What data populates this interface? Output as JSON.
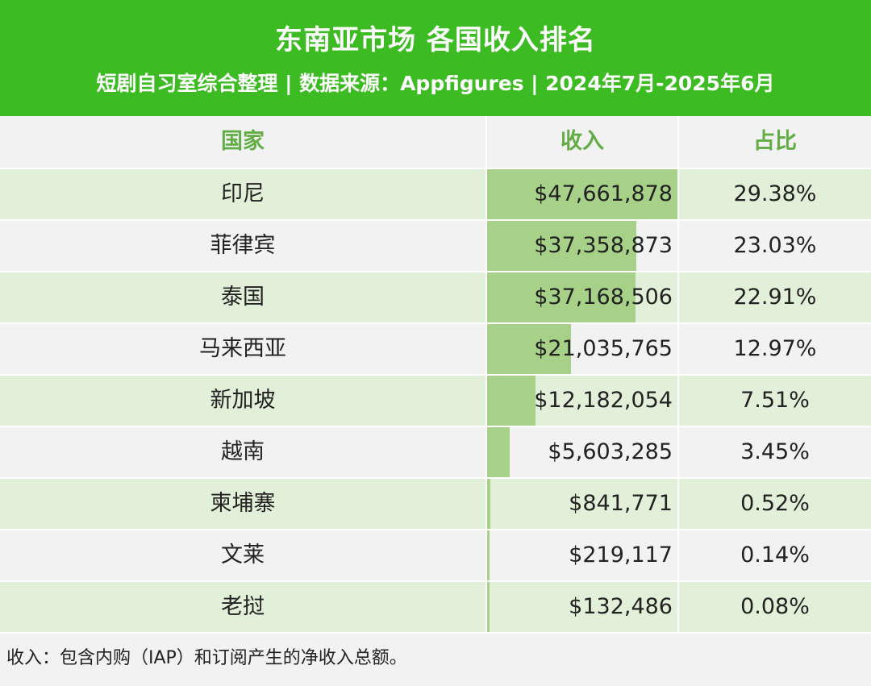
{
  "header": {
    "title": "东南亚市场 各国收入排名",
    "subtitle": "短剧自习室综合整理 | 数据来源：Appfigures | 2024年7月-2025年6月"
  },
  "table": {
    "columns": [
      "国家",
      "收入",
      "占比"
    ],
    "rows": [
      {
        "country": "印尼",
        "revenue": "$47,661,878",
        "share": "29.38%"
      },
      {
        "country": "菲律宾",
        "revenue": "$37,358,873",
        "share": "23.03%"
      },
      {
        "country": "泰国",
        "revenue": "$37,168,506",
        "share": "22.91%"
      },
      {
        "country": "马来西亚",
        "revenue": "$21,035,765",
        "share": "12.97%"
      },
      {
        "country": "新加坡",
        "revenue": "$12,182,054",
        "share": "7.51%"
      },
      {
        "country": "越南",
        "revenue": "$5,603,285",
        "share": "3.45%"
      },
      {
        "country": "柬埔寨",
        "revenue": "$841,771",
        "share": "0.52%"
      },
      {
        "country": "文莱",
        "revenue": "$219,117",
        "share": "0.14%"
      },
      {
        "country": "老挝",
        "revenue": "$132,486",
        "share": "0.08%"
      }
    ]
  },
  "footer": {
    "note": "收入：包含内购（IAP）和订阅产生的净收入总额。"
  },
  "colors": {
    "header_bg": "#3cbc22",
    "header_text": "#ffffff",
    "column_header_text": "#62ad46",
    "row_alt": "#e3f0d9",
    "row_plain": "#f2f2f2",
    "bar": "#a7d189"
  },
  "chart_data": {
    "type": "table",
    "title": "东南亚市场 各国收入排名",
    "subtitle": "短剧自习室综合整理 | 数据来源：Appfigures | 2024年7月-2025年6月",
    "columns": [
      "国家",
      "收入",
      "占比"
    ],
    "categories": [
      "印尼",
      "菲律宾",
      "泰国",
      "马来西亚",
      "新加坡",
      "越南",
      "柬埔寨",
      "文莱",
      "老挝"
    ],
    "series": [
      {
        "name": "收入",
        "values": [
          47661878,
          37358873,
          37168506,
          21035765,
          12182054,
          5603285,
          841771,
          219117,
          132486
        ]
      },
      {
        "name": "占比",
        "values": [
          29.38,
          23.03,
          22.91,
          12.97,
          7.51,
          3.45,
          0.52,
          0.14,
          0.08
        ]
      }
    ]
  }
}
